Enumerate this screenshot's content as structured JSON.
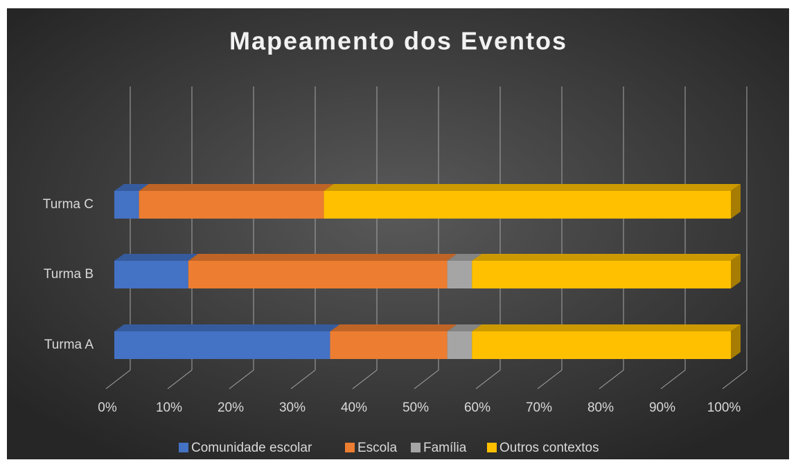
{
  "chart_data": {
    "type": "stacked_bar_horizontal",
    "title": "Mapeamento dos Eventos",
    "categories": [
      "Turma A",
      "Turma B",
      "Turma C"
    ],
    "series": [
      {
        "name": "Comunidade escolar",
        "color": "#4472c4",
        "values": [
          35,
          12,
          4
        ]
      },
      {
        "name": "Escola",
        "color": "#ed7d31",
        "values": [
          19,
          42,
          30
        ]
      },
      {
        "name": "Família",
        "color": "#a5a5a5",
        "values": [
          4,
          4,
          0
        ]
      },
      {
        "name": "Outros contextos",
        "color": "#ffc000",
        "values": [
          42,
          42,
          66
        ]
      }
    ],
    "xlim": [
      0,
      100
    ],
    "xticks": [
      {
        "value": 0,
        "label": "0%"
      },
      {
        "value": 10,
        "label": "10%"
      },
      {
        "value": 20,
        "label": "20%"
      },
      {
        "value": 30,
        "label": "30%"
      },
      {
        "value": 40,
        "label": "40%"
      },
      {
        "value": 50,
        "label": "50%"
      },
      {
        "value": 60,
        "label": "60%"
      },
      {
        "value": 70,
        "label": "70%"
      },
      {
        "value": 80,
        "label": "80%"
      },
      {
        "value": 90,
        "label": "90%"
      },
      {
        "value": 100,
        "label": "100%"
      }
    ],
    "grid": true,
    "legend": "bottom"
  }
}
